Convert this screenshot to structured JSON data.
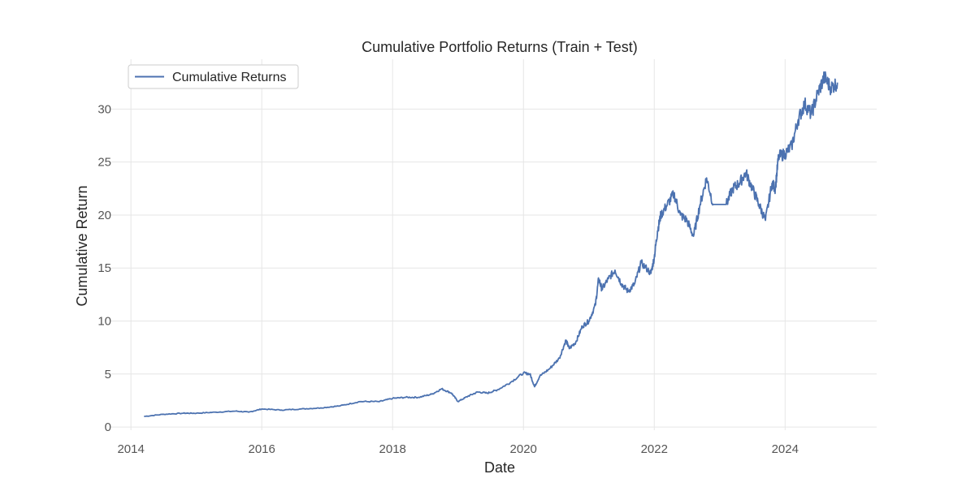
{
  "chart_data": {
    "type": "line",
    "title": "Cumulative Portfolio Returns (Train + Test)",
    "xlabel": "Date",
    "ylabel": "Cumulative Return",
    "xlim": [
      2013.7,
      2025.4
    ],
    "ylim": [
      -0.3,
      34.7
    ],
    "x_ticks": [
      2014,
      2016,
      2018,
      2020,
      2022,
      2024
    ],
    "x_tick_labels": [
      "2014",
      "2016",
      "2018",
      "2020",
      "2022",
      "2024"
    ],
    "y_ticks": [
      0,
      5,
      10,
      15,
      20,
      25,
      30
    ],
    "y_tick_labels": [
      "0",
      "5",
      "10",
      "15",
      "20",
      "25",
      "30"
    ],
    "grid": true,
    "legend": {
      "position": "top-left",
      "entries": [
        "Cumulative Returns"
      ]
    },
    "series": [
      {
        "name": "Cumulative Returns",
        "color": "#4c72b0",
        "x": [
          2014.2,
          2014.5,
          2014.8,
          2015.0,
          2015.3,
          2015.6,
          2015.8,
          2016.0,
          2016.3,
          2016.6,
          2016.9,
          2017.2,
          2017.5,
          2017.8,
          2018.0,
          2018.2,
          2018.4,
          2018.6,
          2018.75,
          2018.9,
          2019.0,
          2019.15,
          2019.3,
          2019.45,
          2019.6,
          2019.8,
          2020.0,
          2020.1,
          2020.17,
          2020.25,
          2020.4,
          2020.55,
          2020.65,
          2020.7,
          2020.8,
          2020.9,
          2021.0,
          2021.1,
          2021.15,
          2021.2,
          2021.3,
          2021.4,
          2021.5,
          2021.6,
          2021.7,
          2021.8,
          2021.95,
          2022.0,
          2022.05,
          2022.1,
          2022.2,
          2022.3,
          2022.4,
          2022.5,
          2022.6,
          2022.7,
          2022.8,
          2022.9,
          2023.0,
          2023.1,
          2023.2,
          2023.3,
          2023.4,
          2023.5,
          2023.6,
          2023.7,
          2023.8,
          2023.85,
          2023.9,
          2024.0,
          2024.1,
          2024.2,
          2024.3,
          2024.4,
          2024.5,
          2024.6,
          2024.7,
          2024.8
        ],
        "values": [
          1.0,
          1.2,
          1.3,
          1.3,
          1.4,
          1.5,
          1.4,
          1.7,
          1.6,
          1.7,
          1.8,
          2.0,
          2.4,
          2.4,
          2.7,
          2.8,
          2.8,
          3.1,
          3.6,
          3.2,
          2.4,
          2.9,
          3.3,
          3.2,
          3.5,
          4.2,
          5.1,
          5.0,
          3.8,
          4.8,
          5.5,
          6.5,
          8.2,
          7.4,
          8.0,
          9.5,
          10.0,
          11.5,
          14.0,
          13.0,
          14.0,
          14.8,
          13.5,
          12.8,
          13.5,
          15.5,
          14.5,
          16.0,
          18.5,
          20.0,
          21.0,
          22.0,
          20.0,
          19.5,
          18.0,
          21.0,
          23.5,
          21.0,
          21.0,
          21.0,
          22.5,
          23.0,
          24.0,
          22.5,
          21.0,
          19.5,
          23.0,
          22.5,
          25.5,
          25.8,
          26.5,
          29.0,
          30.5,
          29.5,
          31.5,
          33.0,
          32.0,
          32.5
        ]
      }
    ]
  }
}
